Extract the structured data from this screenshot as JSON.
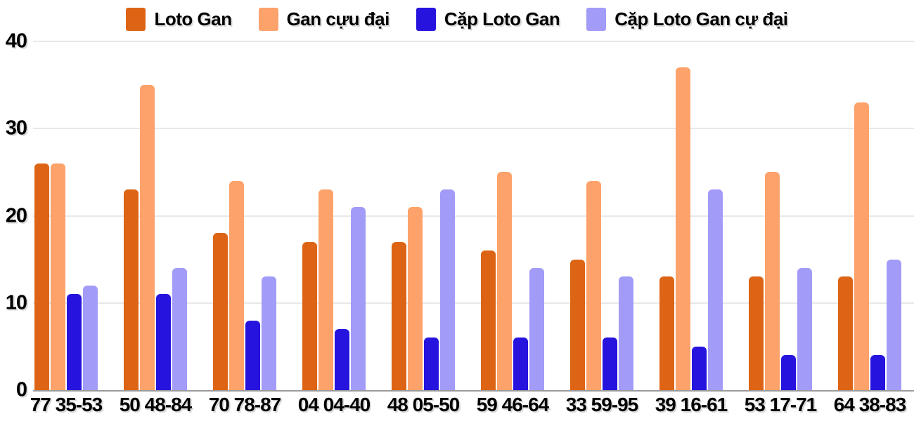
{
  "chart_data": {
    "type": "bar",
    "title": "",
    "xlabel": "",
    "ylabel": "",
    "ylim": [
      0,
      40
    ],
    "yticks": [
      0,
      10,
      20,
      30,
      40
    ],
    "grid": true,
    "legend_position": "top",
    "background_color": "#ffffff",
    "gridline_color": "#e8e8e8",
    "baseline_color": "#9b9b9b",
    "categories": [
      "77 35-53",
      "50 48-84",
      "70 78-87",
      "04 04-40",
      "48 05-50",
      "59 46-64",
      "33 59-95",
      "39 16-61",
      "53 17-71",
      "64 38-83"
    ],
    "series": [
      {
        "name": "Loto Gan",
        "color": "#DD6414",
        "values": [
          26,
          23,
          18,
          17,
          17,
          16,
          15,
          13,
          13,
          13
        ]
      },
      {
        "name": "Gan cựu đại",
        "color": "#FCA26A",
        "values": [
          26,
          35,
          24,
          23,
          21,
          25,
          24,
          37,
          25,
          33
        ]
      },
      {
        "name": "Cặp Loto Gan",
        "color": "#2614DE",
        "values": [
          11,
          11,
          8,
          7,
          6,
          6,
          6,
          5,
          4,
          4
        ]
      },
      {
        "name": "Cặp Loto Gan cự đại",
        "color": "#A29BF8",
        "values": [
          12,
          14,
          13,
          21,
          23,
          14,
          13,
          23,
          14,
          15
        ]
      }
    ]
  }
}
